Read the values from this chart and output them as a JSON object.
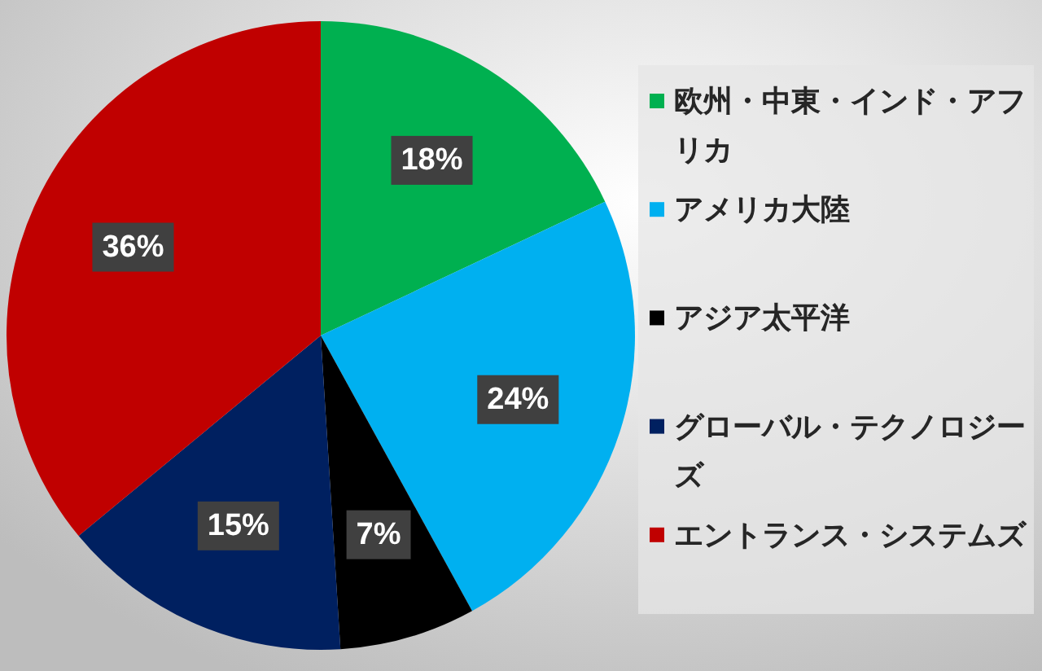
{
  "chart_data": {
    "type": "pie",
    "categories": [
      "欧州・中東・インド・アフリカ",
      "アメリカ大陸",
      "アジア太平洋",
      "グローバル・テクノロジーズ",
      "エントランス・システムズ"
    ],
    "values": [
      18,
      24,
      7,
      15,
      36
    ],
    "colors": [
      "#00b050",
      "#00b0f0",
      "#000000",
      "#002060",
      "#c00000"
    ],
    "value_labels": [
      "18%",
      "24%",
      "7%",
      "15%",
      "36%"
    ],
    "legend": "right"
  }
}
